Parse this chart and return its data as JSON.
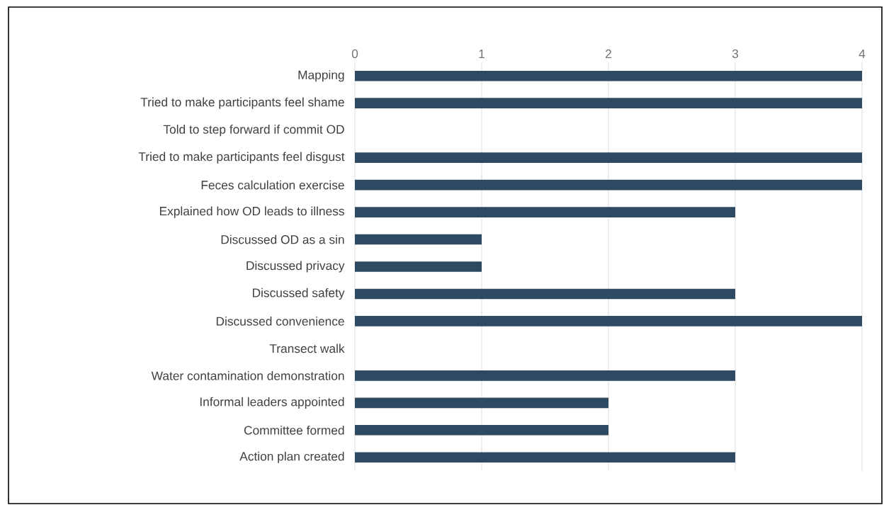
{
  "chart_data": {
    "type": "bar",
    "orientation": "horizontal",
    "categories": [
      "Mapping",
      "Tried to make participants feel shame",
      "Told to step forward if commit OD",
      "Tried to make participants feel disgust",
      "Feces calculation exercise",
      "Explained how OD leads to illness",
      "Discussed OD as a sin",
      "Discussed privacy",
      "Discussed safety",
      "Discussed convenience",
      "Transect walk",
      "Water contamination demonstration",
      "Informal leaders appointed",
      "Committee formed",
      "Action plan created"
    ],
    "values": [
      4,
      4,
      0,
      4,
      4,
      3,
      1,
      1,
      3,
      4,
      0,
      3,
      2,
      2,
      3
    ],
    "color": "#2e4a62",
    "xlim": [
      0,
      4
    ],
    "xticks": [
      0,
      1,
      2,
      3,
      4
    ],
    "grid": "x"
  }
}
